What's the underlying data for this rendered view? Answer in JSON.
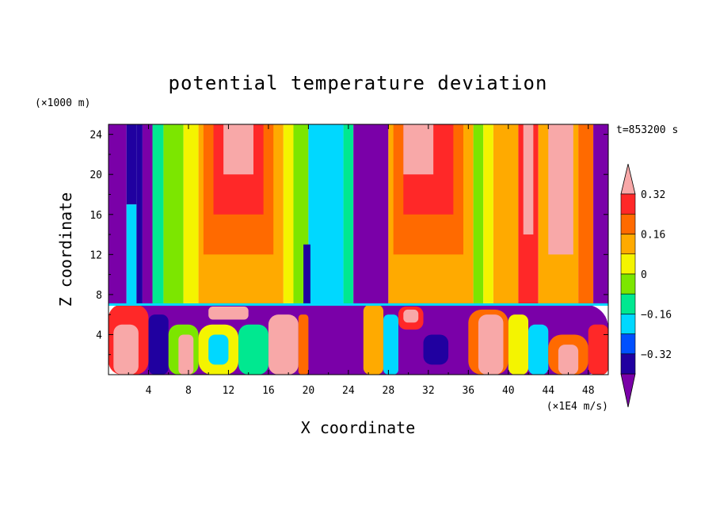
{
  "chart_data": {
    "type": "contour",
    "title": "potential temperature deviation",
    "xlabel": "X coordinate",
    "ylabel": "Z coordinate",
    "x_units": "(×1E4 m/s)",
    "y_units": "(×1000 m)",
    "time_label": "t=853200 s",
    "xlim": [
      0,
      50
    ],
    "ylim": [
      0,
      25
    ],
    "x_ticks": [
      4,
      8,
      12,
      16,
      20,
      24,
      28,
      32,
      36,
      40,
      44,
      48
    ],
    "x_tick_labels": [
      "4",
      "8",
      "12",
      "16",
      "20",
      "24",
      "28",
      "32",
      "36",
      "40",
      "44",
      "48"
    ],
    "y_ticks": [
      4,
      8,
      12,
      16,
      20,
      24
    ],
    "y_tick_labels": [
      "4",
      "8",
      "12",
      "16",
      "20",
      "24"
    ],
    "colorbar": {
      "levels": [
        -0.4,
        -0.32,
        -0.24,
        -0.16,
        -0.08,
        0,
        0.08,
        0.16,
        0.24,
        0.32,
        0.4
      ],
      "labels": [
        {
          "value": -0.32,
          "text": "−0.32"
        },
        {
          "value": -0.16,
          "text": "−0.16"
        },
        {
          "value": 0,
          "text": "0"
        },
        {
          "value": 0.16,
          "text": "0.16"
        },
        {
          "value": 0.32,
          "text": "0.32"
        }
      ],
      "colors": [
        "#7a00a8",
        "#2000a0",
        "#0050ff",
        "#00d8ff",
        "#00e890",
        "#7ce600",
        "#f4f400",
        "#ffaa00",
        "#ff6a00",
        "#ff2828",
        "#f8a8a8"
      ],
      "extend": "both"
    },
    "boundary_layer_top": 7,
    "upper_bands": [
      {
        "x0": 0,
        "x1": 1.8,
        "z0": 7,
        "z1": 25,
        "value": -0.44
      },
      {
        "x0": 1.8,
        "x1": 2.8,
        "z0": 17,
        "z1": 25,
        "value": -0.28
      },
      {
        "x0": 1.8,
        "x1": 2.8,
        "z0": 7,
        "z1": 17,
        "value": -0.12
      },
      {
        "x0": 2.8,
        "x1": 3.4,
        "z0": 7,
        "z1": 25,
        "value": -0.28
      },
      {
        "x0": 3.4,
        "x1": 4.4,
        "z0": 7,
        "z1": 25,
        "value": -0.44
      },
      {
        "x0": 4.4,
        "x1": 5.5,
        "z0": 7,
        "z1": 25,
        "value": -0.04
      },
      {
        "x0": 5.5,
        "x1": 7.5,
        "z0": 7,
        "z1": 25,
        "value": 0.04
      },
      {
        "x0": 7.5,
        "x1": 9,
        "z0": 7,
        "z1": 25,
        "value": 0.12
      },
      {
        "x0": 9,
        "x1": 17.5,
        "z0": 7,
        "z1": 25,
        "value": 0.2
      },
      {
        "x0": 9.5,
        "x1": 16.5,
        "z0": 12,
        "z1": 25,
        "value": 0.28
      },
      {
        "x0": 10.5,
        "x1": 15.5,
        "z0": 16,
        "z1": 25,
        "value": 0.36
      },
      {
        "x0": 11.5,
        "x1": 14.5,
        "z0": 20,
        "z1": 25,
        "value": 0.44
      },
      {
        "x0": 17.5,
        "x1": 18.5,
        "z0": 7,
        "z1": 25,
        "value": 0.12
      },
      {
        "x0": 18.5,
        "x1": 20,
        "z0": 7,
        "z1": 25,
        "value": 0.04
      },
      {
        "x0": 20,
        "x1": 23.5,
        "z0": 7,
        "z1": 25,
        "value": -0.12
      },
      {
        "x0": 19.5,
        "x1": 20.2,
        "z0": 7,
        "z1": 13,
        "value": -0.28
      },
      {
        "x0": 23.5,
        "x1": 24.5,
        "z0": 7,
        "z1": 25,
        "value": -0.04
      },
      {
        "x0": 24.5,
        "x1": 28,
        "z0": 7,
        "z1": 25,
        "value": -0.44
      },
      {
        "x0": 28,
        "x1": 36.5,
        "z0": 7,
        "z1": 25,
        "value": 0.2
      },
      {
        "x0": 28.5,
        "x1": 35.5,
        "z0": 12,
        "z1": 25,
        "value": 0.28
      },
      {
        "x0": 29.5,
        "x1": 34.5,
        "z0": 16,
        "z1": 25,
        "value": 0.36
      },
      {
        "x0": 29.5,
        "x1": 32.5,
        "z0": 20,
        "z1": 25,
        "value": 0.44
      },
      {
        "x0": 36.5,
        "x1": 37.5,
        "z0": 7,
        "z1": 25,
        "value": 0.04
      },
      {
        "x0": 37.5,
        "x1": 38.5,
        "z0": 7,
        "z1": 25,
        "value": 0.12
      },
      {
        "x0": 38.5,
        "x1": 41,
        "z0": 7,
        "z1": 25,
        "value": 0.2
      },
      {
        "x0": 41,
        "x1": 43,
        "z0": 7,
        "z1": 25,
        "value": 0.36
      },
      {
        "x0": 41.5,
        "x1": 42.5,
        "z0": 14,
        "z1": 25,
        "value": 0.44
      },
      {
        "x0": 43,
        "x1": 47,
        "z0": 7,
        "z1": 25,
        "value": 0.2
      },
      {
        "x0": 44,
        "x1": 46.5,
        "z0": 12,
        "z1": 25,
        "value": 0.44
      },
      {
        "x0": 47,
        "x1": 48.5,
        "z0": 7,
        "z1": 25,
        "value": 0.28
      },
      {
        "x0": 48.5,
        "x1": 50,
        "z0": 7,
        "z1": 25,
        "value": -0.44
      }
    ],
    "lower_patches": [
      {
        "x0": 0,
        "x1": 50,
        "z0": 0,
        "z1": 7,
        "value": -0.44
      },
      {
        "x0": 0,
        "x1": 4,
        "z0": 0,
        "z1": 7,
        "value": 0.36
      },
      {
        "x0": 0.5,
        "x1": 3,
        "z0": 0,
        "z1": 5,
        "value": 0.44
      },
      {
        "x0": 4,
        "x1": 6,
        "z0": 0,
        "z1": 6,
        "value": -0.28
      },
      {
        "x0": 6,
        "x1": 9,
        "z0": 0,
        "z1": 5,
        "value": 0.04
      },
      {
        "x0": 7,
        "x1": 8.5,
        "z0": 0,
        "z1": 4,
        "value": 0.44
      },
      {
        "x0": 9,
        "x1": 13,
        "z0": 0,
        "z1": 5,
        "value": 0.12
      },
      {
        "x0": 10,
        "x1": 12,
        "z0": 1,
        "z1": 4,
        "value": -0.12
      },
      {
        "x0": 13,
        "x1": 16,
        "z0": 0,
        "z1": 5,
        "value": -0.04
      },
      {
        "x0": 16,
        "x1": 19,
        "z0": 0,
        "z1": 6,
        "value": 0.44
      },
      {
        "x0": 10,
        "x1": 14,
        "z0": 5.5,
        "z1": 6.8,
        "value": 0.44
      },
      {
        "x0": 19,
        "x1": 20,
        "z0": 0,
        "z1": 6,
        "value": 0.28
      },
      {
        "x0": 25.5,
        "x1": 27.5,
        "z0": 0,
        "z1": 7,
        "value": 0.2
      },
      {
        "x0": 27.5,
        "x1": 29,
        "z0": 0,
        "z1": 6,
        "value": -0.12
      },
      {
        "x0": 29,
        "x1": 31.5,
        "z0": 4.5,
        "z1": 6.8,
        "value": 0.36
      },
      {
        "x0": 29.5,
        "x1": 31,
        "z0": 5.2,
        "z1": 6.5,
        "value": 0.44
      },
      {
        "x0": 31.5,
        "x1": 34,
        "z0": 1,
        "z1": 4,
        "value": -0.28
      },
      {
        "x0": 36,
        "x1": 40,
        "z0": 0,
        "z1": 6.5,
        "value": 0.28
      },
      {
        "x0": 37,
        "x1": 39.5,
        "z0": 0,
        "z1": 6,
        "value": 0.44
      },
      {
        "x0": 40,
        "x1": 42,
        "z0": 0,
        "z1": 6,
        "value": 0.12
      },
      {
        "x0": 42,
        "x1": 44,
        "z0": 0,
        "z1": 5,
        "value": -0.12
      },
      {
        "x0": 44,
        "x1": 48,
        "z0": 0,
        "z1": 4,
        "value": 0.28
      },
      {
        "x0": 45,
        "x1": 47,
        "z0": 0,
        "z1": 3,
        "value": 0.44
      },
      {
        "x0": 48,
        "x1": 50,
        "z0": 0,
        "z1": 5,
        "value": 0.36
      }
    ]
  }
}
